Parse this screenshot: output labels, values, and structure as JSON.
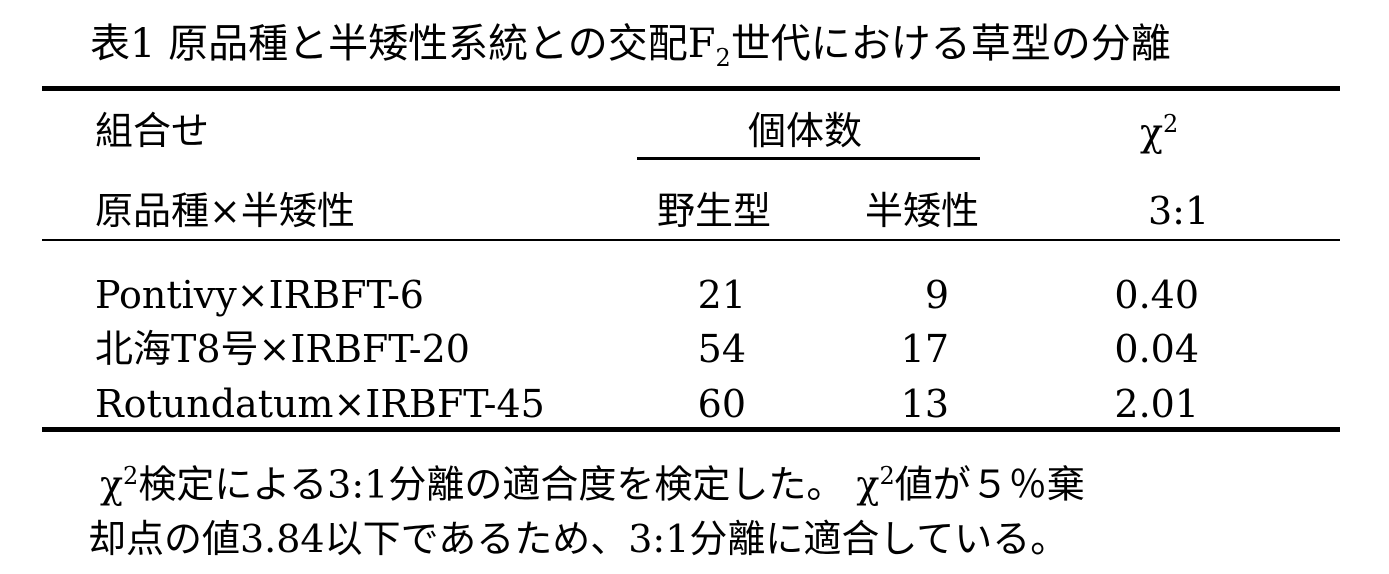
{
  "title": {
    "prefix": "表1 原品種と半矮性系統との交配F",
    "sub": "2",
    "suffix": "世代における草型の分離"
  },
  "header": {
    "combination": "組合せ",
    "count_group": "個体数",
    "chi_symbol": "χ",
    "chi_sup": "2",
    "cross": "原品種×半矮性",
    "wild": "野生型",
    "dwarf": "半矮性",
    "ratio": "3:1"
  },
  "rows": [
    {
      "cross": "Pontivy×IRBFT-6",
      "wild": "21",
      "dwarf": "9",
      "chi2": "0.40"
    },
    {
      "cross": "北海T8号×IRBFT-20",
      "wild": "54",
      "dwarf": "17",
      "chi2": "0.04"
    },
    {
      "cross": "Rotundatum×IRBFT-45",
      "wild": "60",
      "dwarf": "13",
      "chi2": "2.01"
    }
  ],
  "footnote": {
    "line1_a": "χ",
    "line1_sup_a": "2",
    "line1_b": "検定による3:1分離の適合度を検定した。 χ",
    "line1_sup_b": "2",
    "line1_c": "値が５％棄",
    "line2": "却点の値3.84以下であるため、3:1分離に適合している。"
  }
}
